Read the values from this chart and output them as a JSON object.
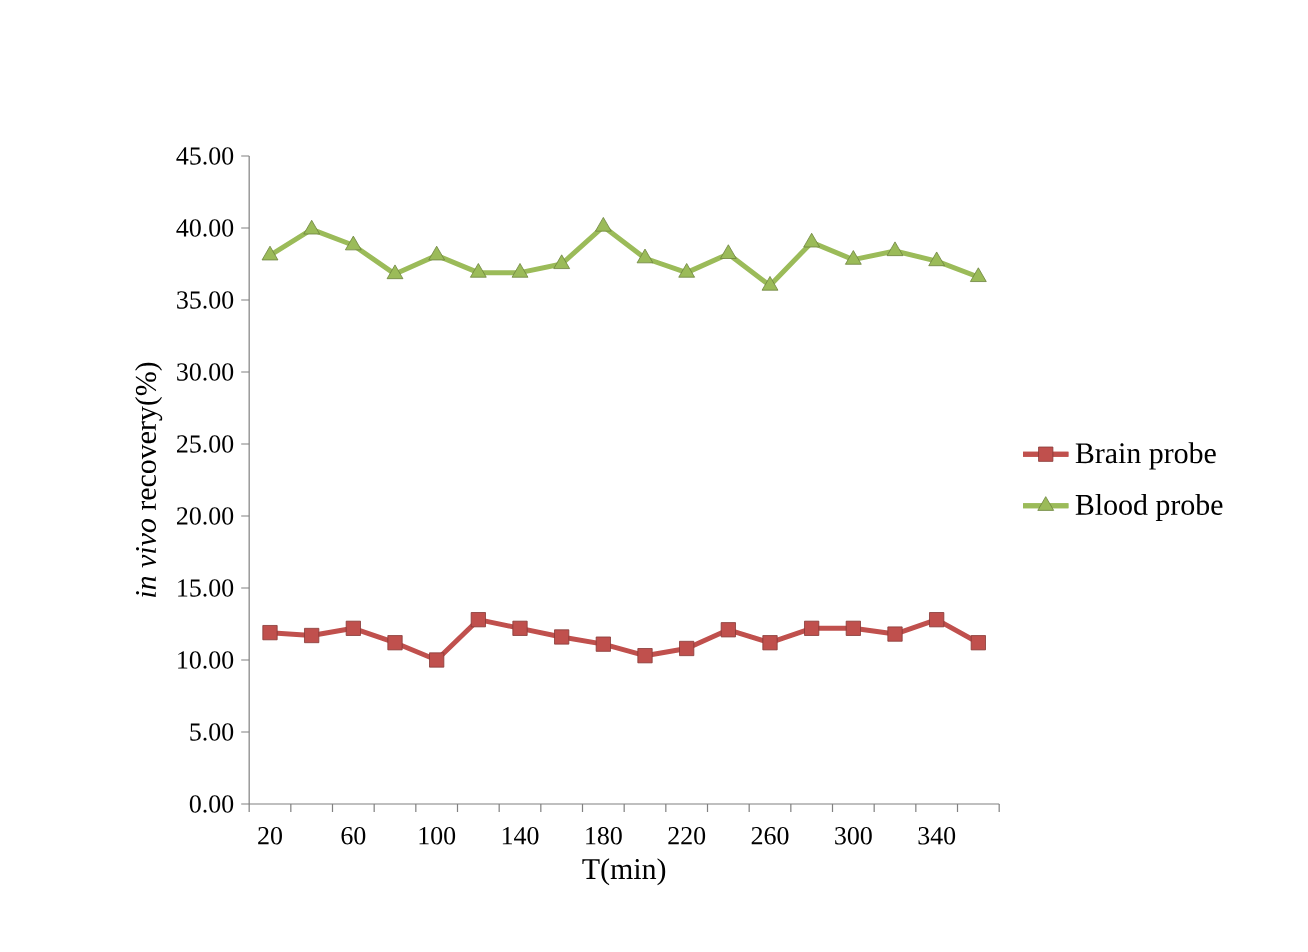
{
  "chart_data": {
    "type": "line",
    "xlabel": "T(min)",
    "ylabel": "*in vivo* recovery(%)",
    "categories": [
      "20",
      null,
      "60",
      null,
      "100",
      null,
      "140",
      null,
      "180",
      null,
      "220",
      null,
      "260",
      null,
      "300",
      null,
      "340",
      null
    ],
    "ylim": [
      0,
      45
    ],
    "yticks": [
      {
        "value": 0,
        "label": "0.00"
      },
      {
        "value": 5,
        "label": "5.00"
      },
      {
        "value": 10,
        "label": "10.00"
      },
      {
        "value": 15,
        "label": "15.00"
      },
      {
        "value": 20,
        "label": "20.00"
      },
      {
        "value": 25,
        "label": "25.00"
      },
      {
        "value": 30,
        "label": "30.00"
      },
      {
        "value": 35,
        "label": "35.00"
      },
      {
        "value": 40,
        "label": "40.00"
      },
      {
        "value": 45,
        "label": "45.00"
      }
    ],
    "legend": "right",
    "grid": false,
    "line_style": "solid",
    "series": [
      {
        "name": "Brain probe",
        "color": "#c0504d",
        "marker": "square",
        "values": [
          11.9,
          11.7,
          12.2,
          11.2,
          10.0,
          12.8,
          12.2,
          11.6,
          11.1,
          10.3,
          10.8,
          12.1,
          11.2,
          12.2,
          12.2,
          11.8,
          12.8,
          11.2
        ]
      },
      {
        "name": "Blood probe",
        "color": "#9bbb59",
        "marker": "triangle",
        "values": [
          38.1,
          39.9,
          38.8,
          36.8,
          38.1,
          36.9,
          36.9,
          37.5,
          40.1,
          37.9,
          36.9,
          38.2,
          36.0,
          39.0,
          37.8,
          38.4,
          37.7,
          36.6
        ]
      }
    ]
  }
}
